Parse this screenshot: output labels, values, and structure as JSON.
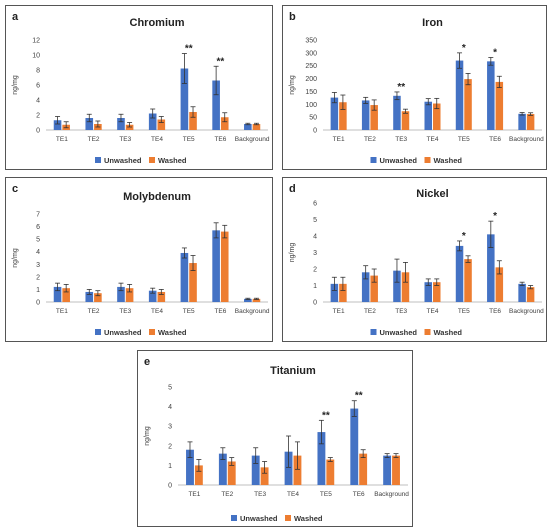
{
  "colors": {
    "unwashed": "#4472C4",
    "washed": "#ED7D31",
    "error": "#333333",
    "axis": "#bfbfbf",
    "text": "#404040"
  },
  "legend": {
    "unwashed": "Unwashed",
    "washed": "Washed"
  },
  "chart_data": [
    {
      "panel_letter": "a",
      "type": "bar",
      "title": "Chromium",
      "ylabel": "ng/mg",
      "categories": [
        "TE1",
        "TE2",
        "TE3",
        "TE4",
        "TE5",
        "TE6",
        "Background"
      ],
      "ylim": [
        0,
        12
      ],
      "yticks": [
        0,
        2,
        4,
        6,
        8,
        10,
        12
      ],
      "series": [
        {
          "name": "Unwashed",
          "values": [
            1.3,
            1.6,
            1.6,
            2.2,
            8.2,
            6.6,
            0.8
          ],
          "errors": [
            0.5,
            0.5,
            0.5,
            0.6,
            2.0,
            1.9,
            0.1
          ]
        },
        {
          "name": "Washed",
          "values": [
            0.7,
            0.8,
            0.7,
            1.4,
            2.4,
            1.7,
            0.8
          ],
          "errors": [
            0.4,
            0.4,
            0.3,
            0.4,
            0.7,
            0.6,
            0.1
          ]
        }
      ],
      "annotations": [
        {
          "category": "TE5",
          "text": "**"
        },
        {
          "category": "TE6",
          "text": "**"
        }
      ]
    },
    {
      "panel_letter": "b",
      "type": "bar",
      "title": "Iron",
      "ylabel": "ng/mg",
      "categories": [
        "TE1",
        "TE2",
        "TE3",
        "TE4",
        "TE5",
        "TE6",
        "Background"
      ],
      "ylim": [
        0,
        350
      ],
      "yticks": [
        0,
        50,
        100,
        150,
        200,
        250,
        300,
        350
      ],
      "series": [
        {
          "name": "Unwashed",
          "values": [
            126,
            115,
            133,
            110,
            270,
            267,
            63
          ],
          "errors": [
            20,
            12,
            15,
            12,
            30,
            15,
            5
          ]
        },
        {
          "name": "Washed",
          "values": [
            108,
            97,
            73,
            103,
            198,
            187,
            62
          ],
          "errors": [
            28,
            20,
            8,
            20,
            22,
            22,
            5
          ]
        }
      ],
      "annotations": [
        {
          "category": "TE3",
          "text": "**"
        },
        {
          "category": "TE5",
          "text": "*"
        },
        {
          "category": "TE6",
          "text": "*"
        }
      ]
    },
    {
      "panel_letter": "c",
      "type": "bar",
      "title": "Molybdenum",
      "ylabel": "ng/mg",
      "categories": [
        "TE1",
        "TE2",
        "TE3",
        "TE4",
        "TE5",
        "TE6",
        "Background"
      ],
      "ylim": [
        0,
        7
      ],
      "yticks": [
        0,
        1,
        2,
        3,
        4,
        5,
        6,
        7
      ],
      "series": [
        {
          "name": "Unwashed",
          "values": [
            1.2,
            0.8,
            1.2,
            0.9,
            3.9,
            5.7,
            0.25
          ],
          "errors": [
            0.3,
            0.2,
            0.3,
            0.2,
            0.4,
            0.6,
            0.05
          ]
        },
        {
          "name": "Washed",
          "values": [
            1.1,
            0.7,
            1.1,
            0.8,
            3.1,
            5.6,
            0.25
          ],
          "errors": [
            0.3,
            0.2,
            0.3,
            0.2,
            0.6,
            0.5,
            0.05
          ]
        }
      ],
      "annotations": []
    },
    {
      "panel_letter": "d",
      "type": "bar",
      "title": "Nickel",
      "ylabel": "ng/mg",
      "categories": [
        "TE1",
        "TE2",
        "TE3",
        "TE4",
        "TE5",
        "TE6",
        "Background"
      ],
      "ylim": [
        0,
        6
      ],
      "yticks": [
        0,
        1,
        2,
        3,
        4,
        5,
        6
      ],
      "series": [
        {
          "name": "Unwashed",
          "values": [
            1.1,
            1.8,
            1.9,
            1.2,
            3.4,
            4.1,
            1.1
          ],
          "errors": [
            0.4,
            0.4,
            0.7,
            0.2,
            0.3,
            0.8,
            0.1
          ]
        },
        {
          "name": "Washed",
          "values": [
            1.1,
            1.6,
            1.8,
            1.2,
            2.6,
            2.1,
            0.9
          ],
          "errors": [
            0.4,
            0.4,
            0.6,
            0.2,
            0.2,
            0.4,
            0.1
          ]
        }
      ],
      "annotations": [
        {
          "category": "TE5",
          "text": "*"
        },
        {
          "category": "TE6",
          "text": "*"
        }
      ]
    },
    {
      "panel_letter": "e",
      "type": "bar",
      "title": "Titanium",
      "ylabel": "ng/mg",
      "categories": [
        "TE1",
        "TE2",
        "TE3",
        "TE4",
        "TE5",
        "TE6",
        "Background"
      ],
      "ylim": [
        0,
        5
      ],
      "yticks": [
        0,
        1,
        2,
        3,
        4,
        5
      ],
      "series": [
        {
          "name": "Unwashed",
          "values": [
            1.8,
            1.6,
            1.5,
            1.7,
            2.7,
            3.9,
            1.5
          ],
          "errors": [
            0.4,
            0.3,
            0.4,
            0.8,
            0.6,
            0.4,
            0.1
          ]
        },
        {
          "name": "Washed",
          "values": [
            1.0,
            1.2,
            0.9,
            1.5,
            1.3,
            1.6,
            1.5
          ],
          "errors": [
            0.3,
            0.2,
            0.3,
            0.7,
            0.1,
            0.2,
            0.1
          ]
        }
      ],
      "annotations": [
        {
          "category": "TE5",
          "text": "**"
        },
        {
          "category": "TE6",
          "text": "**"
        }
      ]
    }
  ]
}
